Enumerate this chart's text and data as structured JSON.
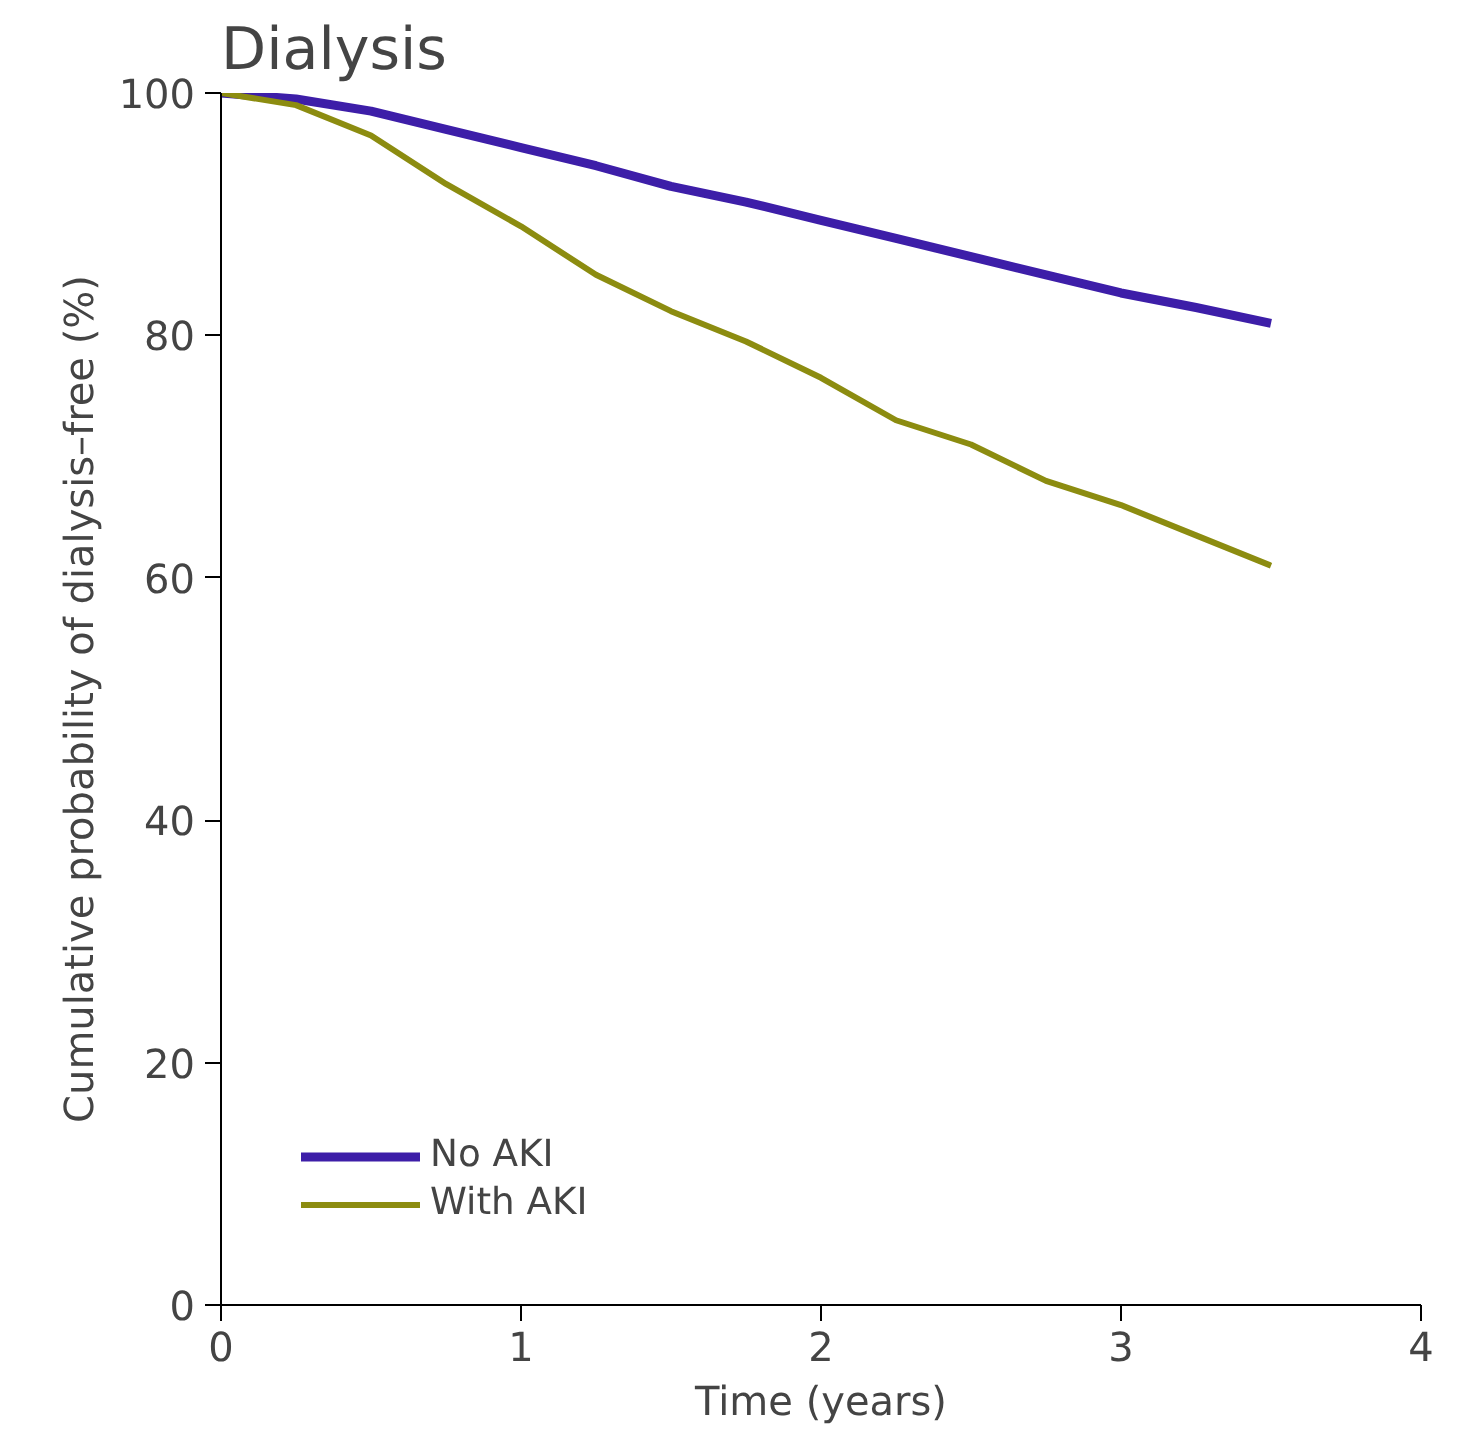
{
  "chart_data": {
    "type": "line",
    "title": "Dialysis",
    "xlabel": "Time (years)",
    "ylabel": "Cumulative probability of dialysis–free (%)",
    "xlim": [
      0,
      4
    ],
    "ylim": [
      0,
      100
    ],
    "xticks": [
      0,
      1,
      2,
      3,
      4
    ],
    "yticks": [
      0,
      20,
      40,
      60,
      80,
      100
    ],
    "grid": false,
    "legend": "bottom left",
    "line_style": "solid",
    "marker": "none",
    "series": [
      {
        "name": "No AKI",
        "color": "#3d1ea8",
        "x": [
          0,
          0.25,
          0.5,
          0.75,
          1,
          1.25,
          1.5,
          1.75,
          2,
          2.25,
          2.5,
          2.75,
          3,
          3.25,
          3.5
        ],
        "values": [
          100,
          99.5,
          98.5,
          97,
          95.5,
          94,
          92.3,
          91,
          89.5,
          88,
          86.5,
          85,
          83.5,
          82.3,
          81
        ]
      },
      {
        "name": "With AKI",
        "color": "#8c8c10",
        "x": [
          0,
          0.25,
          0.5,
          0.75,
          1,
          1.25,
          1.5,
          1.75,
          2,
          2.25,
          2.5,
          2.75,
          3,
          3.25,
          3.5
        ],
        "values": [
          100,
          99,
          96.5,
          92.5,
          89,
          85,
          82,
          79.5,
          76.5,
          73,
          71,
          68,
          66,
          63.5,
          61
        ]
      }
    ]
  }
}
